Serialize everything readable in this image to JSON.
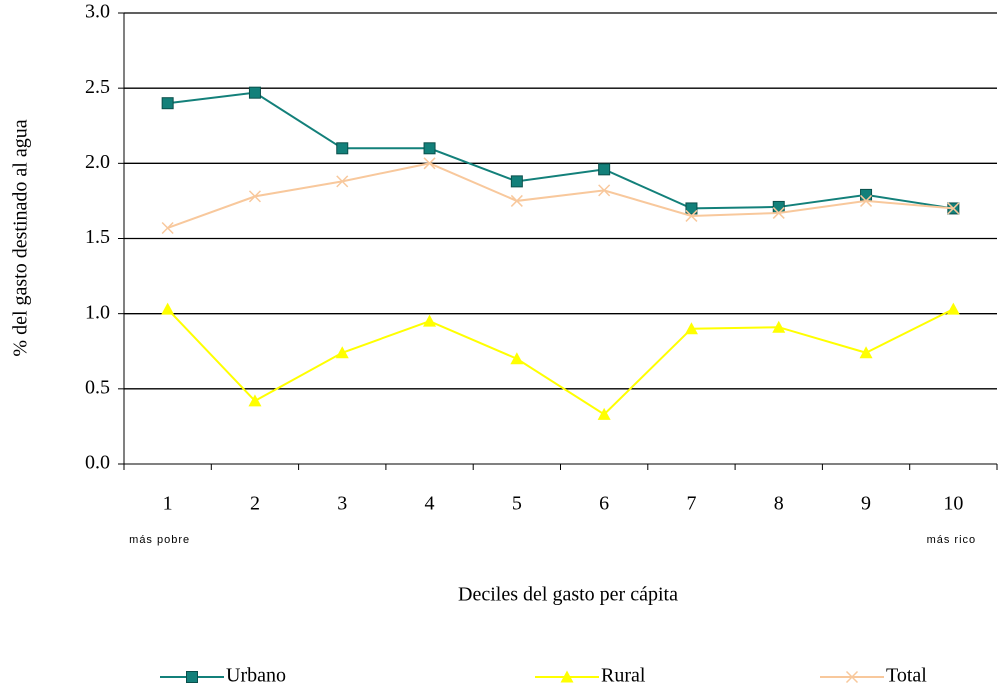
{
  "chart_data": {
    "type": "line",
    "x_label": "Deciles del gasto per cápita",
    "y_label": "% del gasto destinado al agua",
    "categories": [
      "1",
      "2",
      "3",
      "4",
      "5",
      "6",
      "7",
      "8",
      "9",
      "10"
    ],
    "category_notes": [
      "más pobre",
      null,
      null,
      null,
      null,
      null,
      null,
      null,
      null,
      "más rico"
    ],
    "series": [
      {
        "name": "Urbano",
        "color": "#13807a",
        "marker": "square",
        "values": [
          2.4,
          2.47,
          2.1,
          2.1,
          1.88,
          1.96,
          1.7,
          1.71,
          1.79,
          1.7
        ]
      },
      {
        "name": "Rural",
        "color": "#ffff00",
        "marker": "triangle",
        "values": [
          1.03,
          0.42,
          0.74,
          0.95,
          0.7,
          0.33,
          0.9,
          0.91,
          0.74,
          1.03
        ]
      },
      {
        "name": "Total",
        "color": "#f8c89c",
        "marker": "x",
        "values": [
          1.57,
          1.78,
          1.88,
          2.0,
          1.75,
          1.82,
          1.65,
          1.67,
          1.75,
          1.7
        ]
      }
    ],
    "ylim": [
      0,
      3
    ],
    "yticks": [
      {
        "value": 0,
        "label": "0.0"
      },
      {
        "value": 0.5,
        "label": "0.5"
      },
      {
        "value": 1,
        "label": "1.0"
      },
      {
        "value": 1.5,
        "label": "1.5"
      },
      {
        "value": 2,
        "label": "2.0"
      },
      {
        "value": 2.5,
        "label": "2.5"
      },
      {
        "value": 3,
        "label": "3.0"
      }
    ],
    "grid": true
  }
}
